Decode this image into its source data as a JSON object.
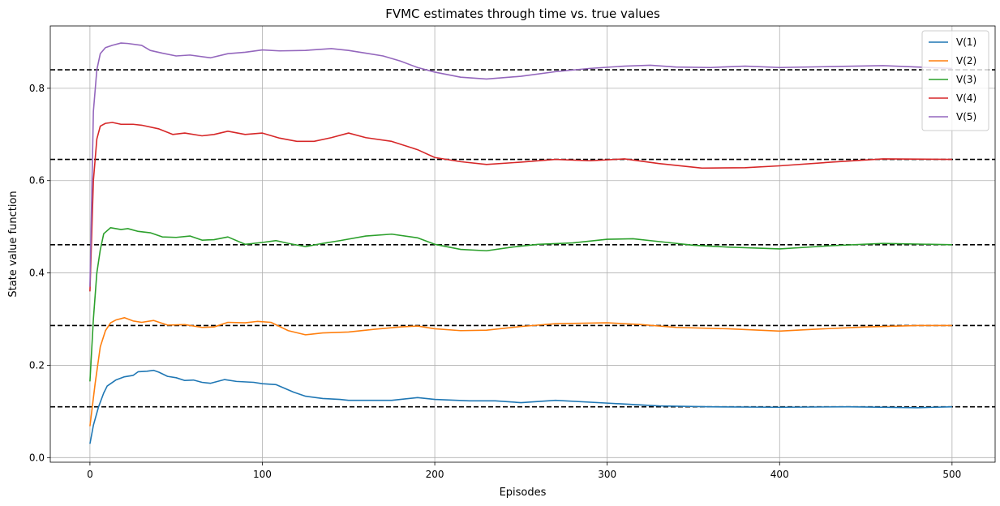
{
  "chart_data": {
    "type": "line",
    "title": "FVMC estimates through time vs. true values",
    "xlabel": "Episodes",
    "ylabel": "State value function",
    "xlim": [
      -23,
      525
    ],
    "ylim": [
      -0.01,
      0.935
    ],
    "xticks": [
      0,
      100,
      200,
      300,
      400,
      500
    ],
    "yticks": [
      0.0,
      0.2,
      0.4,
      0.6,
      0.8
    ],
    "ytick_labels": [
      "0.0",
      "0.2",
      "0.4",
      "0.6",
      "0.8"
    ],
    "grid": true,
    "legend_position": "top-right",
    "true_values": [
      0.11,
      0.286,
      0.461,
      0.646,
      0.84
    ],
    "true_value_line_color": "#000000",
    "series": [
      {
        "name": "V(1)",
        "color": "#1f77b4",
        "points": [
          [
            0,
            0.03
          ],
          [
            2,
            0.07
          ],
          [
            5,
            0.11
          ],
          [
            8,
            0.14
          ],
          [
            10,
            0.155
          ],
          [
            15,
            0.168
          ],
          [
            20,
            0.175
          ],
          [
            25,
            0.178
          ],
          [
            28,
            0.186
          ],
          [
            33,
            0.187
          ],
          [
            37,
            0.189
          ],
          [
            40,
            0.185
          ],
          [
            45,
            0.176
          ],
          [
            50,
            0.173
          ],
          [
            55,
            0.167
          ],
          [
            60,
            0.168
          ],
          [
            65,
            0.163
          ],
          [
            70,
            0.161
          ],
          [
            78,
            0.169
          ],
          [
            85,
            0.165
          ],
          [
            95,
            0.163
          ],
          [
            100,
            0.16
          ],
          [
            108,
            0.158
          ],
          [
            118,
            0.142
          ],
          [
            125,
            0.133
          ],
          [
            135,
            0.128
          ],
          [
            145,
            0.126
          ],
          [
            150,
            0.124
          ],
          [
            160,
            0.124
          ],
          [
            175,
            0.124
          ],
          [
            190,
            0.13
          ],
          [
            200,
            0.126
          ],
          [
            220,
            0.123
          ],
          [
            235,
            0.123
          ],
          [
            250,
            0.119
          ],
          [
            270,
            0.124
          ],
          [
            300,
            0.118
          ],
          [
            330,
            0.112
          ],
          [
            360,
            0.11
          ],
          [
            400,
            0.109
          ],
          [
            440,
            0.11
          ],
          [
            480,
            0.108
          ],
          [
            500,
            0.11
          ]
        ]
      },
      {
        "name": "V(2)",
        "color": "#ff7f0e",
        "points": [
          [
            0,
            0.068
          ],
          [
            3,
            0.16
          ],
          [
            6,
            0.24
          ],
          [
            9,
            0.275
          ],
          [
            12,
            0.292
          ],
          [
            15,
            0.298
          ],
          [
            20,
            0.303
          ],
          [
            25,
            0.296
          ],
          [
            30,
            0.293
          ],
          [
            37,
            0.297
          ],
          [
            45,
            0.287
          ],
          [
            55,
            0.288
          ],
          [
            65,
            0.282
          ],
          [
            72,
            0.283
          ],
          [
            80,
            0.293
          ],
          [
            90,
            0.292
          ],
          [
            97,
            0.295
          ],
          [
            105,
            0.293
          ],
          [
            115,
            0.275
          ],
          [
            125,
            0.266
          ],
          [
            135,
            0.27
          ],
          [
            150,
            0.272
          ],
          [
            165,
            0.278
          ],
          [
            180,
            0.283
          ],
          [
            190,
            0.285
          ],
          [
            200,
            0.279
          ],
          [
            215,
            0.275
          ],
          [
            230,
            0.276
          ],
          [
            250,
            0.284
          ],
          [
            270,
            0.29
          ],
          [
            300,
            0.292
          ],
          [
            320,
            0.288
          ],
          [
            340,
            0.282
          ],
          [
            370,
            0.279
          ],
          [
            400,
            0.274
          ],
          [
            420,
            0.278
          ],
          [
            450,
            0.283
          ],
          [
            480,
            0.286
          ],
          [
            500,
            0.286
          ]
        ]
      },
      {
        "name": "V(3)",
        "color": "#2ca02c",
        "points": [
          [
            0,
            0.165
          ],
          [
            2,
            0.3
          ],
          [
            4,
            0.4
          ],
          [
            6,
            0.45
          ],
          [
            8,
            0.485
          ],
          [
            12,
            0.498
          ],
          [
            18,
            0.494
          ],
          [
            22,
            0.496
          ],
          [
            28,
            0.49
          ],
          [
            35,
            0.487
          ],
          [
            42,
            0.478
          ],
          [
            50,
            0.477
          ],
          [
            58,
            0.48
          ],
          [
            65,
            0.471
          ],
          [
            72,
            0.472
          ],
          [
            80,
            0.478
          ],
          [
            90,
            0.462
          ],
          [
            100,
            0.466
          ],
          [
            108,
            0.47
          ],
          [
            115,
            0.464
          ],
          [
            125,
            0.457
          ],
          [
            135,
            0.464
          ],
          [
            145,
            0.47
          ],
          [
            160,
            0.48
          ],
          [
            175,
            0.484
          ],
          [
            190,
            0.476
          ],
          [
            200,
            0.462
          ],
          [
            215,
            0.451
          ],
          [
            230,
            0.448
          ],
          [
            245,
            0.456
          ],
          [
            260,
            0.462
          ],
          [
            280,
            0.465
          ],
          [
            300,
            0.473
          ],
          [
            315,
            0.474
          ],
          [
            330,
            0.468
          ],
          [
            350,
            0.46
          ],
          [
            370,
            0.456
          ],
          [
            400,
            0.452
          ],
          [
            430,
            0.459
          ],
          [
            460,
            0.464
          ],
          [
            500,
            0.461
          ]
        ]
      },
      {
        "name": "V(4)",
        "color": "#d62728",
        "points": [
          [
            0,
            0.36
          ],
          [
            2,
            0.6
          ],
          [
            4,
            0.69
          ],
          [
            6,
            0.718
          ],
          [
            9,
            0.724
          ],
          [
            13,
            0.726
          ],
          [
            18,
            0.722
          ],
          [
            25,
            0.722
          ],
          [
            30,
            0.72
          ],
          [
            40,
            0.712
          ],
          [
            48,
            0.7
          ],
          [
            55,
            0.703
          ],
          [
            65,
            0.697
          ],
          [
            72,
            0.7
          ],
          [
            80,
            0.707
          ],
          [
            90,
            0.7
          ],
          [
            100,
            0.703
          ],
          [
            110,
            0.692
          ],
          [
            120,
            0.685
          ],
          [
            130,
            0.685
          ],
          [
            140,
            0.693
          ],
          [
            150,
            0.703
          ],
          [
            160,
            0.693
          ],
          [
            175,
            0.685
          ],
          [
            190,
            0.667
          ],
          [
            200,
            0.65
          ],
          [
            215,
            0.641
          ],
          [
            230,
            0.635
          ],
          [
            250,
            0.64
          ],
          [
            270,
            0.646
          ],
          [
            290,
            0.643
          ],
          [
            310,
            0.647
          ],
          [
            330,
            0.637
          ],
          [
            355,
            0.627
          ],
          [
            380,
            0.628
          ],
          [
            400,
            0.632
          ],
          [
            430,
            0.64
          ],
          [
            460,
            0.647
          ],
          [
            500,
            0.646
          ]
        ]
      },
      {
        "name": "V(5)",
        "color": "#9467bd",
        "points": [
          [
            0,
            0.37
          ],
          [
            2,
            0.75
          ],
          [
            4,
            0.84
          ],
          [
            6,
            0.875
          ],
          [
            9,
            0.888
          ],
          [
            13,
            0.893
          ],
          [
            18,
            0.898
          ],
          [
            22,
            0.897
          ],
          [
            30,
            0.893
          ],
          [
            35,
            0.882
          ],
          [
            42,
            0.876
          ],
          [
            50,
            0.87
          ],
          [
            58,
            0.872
          ],
          [
            70,
            0.866
          ],
          [
            80,
            0.875
          ],
          [
            90,
            0.878
          ],
          [
            100,
            0.883
          ],
          [
            110,
            0.881
          ],
          [
            125,
            0.882
          ],
          [
            140,
            0.886
          ],
          [
            150,
            0.882
          ],
          [
            160,
            0.876
          ],
          [
            170,
            0.87
          ],
          [
            180,
            0.859
          ],
          [
            190,
            0.845
          ],
          [
            200,
            0.835
          ],
          [
            215,
            0.824
          ],
          [
            230,
            0.82
          ],
          [
            250,
            0.826
          ],
          [
            270,
            0.836
          ],
          [
            290,
            0.843
          ],
          [
            310,
            0.848
          ],
          [
            325,
            0.85
          ],
          [
            340,
            0.846
          ],
          [
            360,
            0.845
          ],
          [
            380,
            0.848
          ],
          [
            400,
            0.845
          ],
          [
            430,
            0.847
          ],
          [
            460,
            0.849
          ],
          [
            500,
            0.843
          ]
        ]
      }
    ]
  }
}
